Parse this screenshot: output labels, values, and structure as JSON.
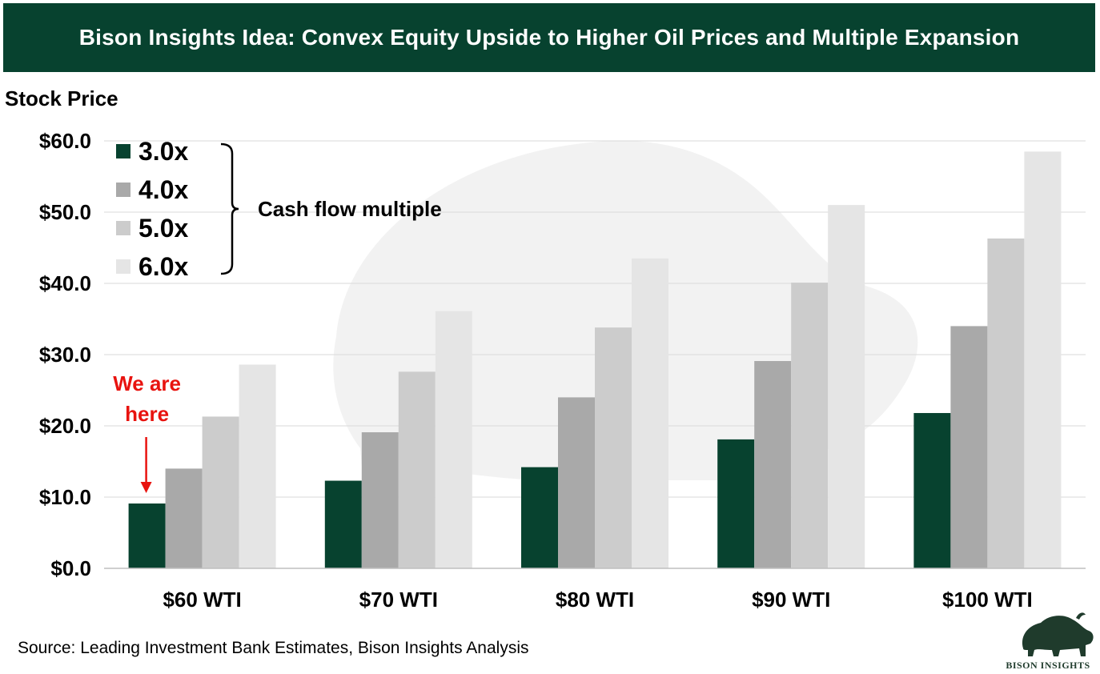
{
  "header": {
    "title": "Bison Insights Idea: Convex Equity Upside to Higher Oil Prices and Multiple Expansion"
  },
  "chart_data": {
    "type": "bar",
    "ylabel": "Stock Price",
    "ylim": [
      0,
      60
    ],
    "yticks": [
      "$0.0",
      "$10.0",
      "$20.0",
      "$30.0",
      "$40.0",
      "$50.0",
      "$60.0"
    ],
    "ytick_values": [
      0,
      10,
      20,
      30,
      40,
      50,
      60
    ],
    "grid": true,
    "categories": [
      "$60 WTI",
      "$70 WTI",
      "$80 WTI",
      "$90 WTI",
      "$100 WTI"
    ],
    "series": [
      {
        "name": "3.0x",
        "color": "#07422f",
        "values": [
          9.1,
          12.3,
          14.2,
          18.1,
          21.8
        ]
      },
      {
        "name": "4.0x",
        "color": "#a9a9a9",
        "values": [
          14.0,
          19.1,
          24.0,
          29.1,
          34.0
        ]
      },
      {
        "name": "5.0x",
        "color": "#cccccc",
        "values": [
          21.3,
          27.6,
          33.8,
          40.1,
          46.3
        ]
      },
      {
        "name": "6.0x",
        "color": "#e5e5e5",
        "values": [
          28.6,
          36.1,
          43.5,
          51.0,
          58.5
        ]
      }
    ],
    "legend_title": "Cash flow multiple",
    "legend_position": "top-left",
    "annotation": {
      "text_line1": "We are",
      "text_line2": "here",
      "target_category": "$60 WTI",
      "color": "#e8130f"
    }
  },
  "footer": {
    "source": "Source: Leading Investment Bank Estimates, Bison Insights Analysis",
    "logo_text": "BISON INSIGHTS",
    "logo_icon": "bison-icon"
  }
}
